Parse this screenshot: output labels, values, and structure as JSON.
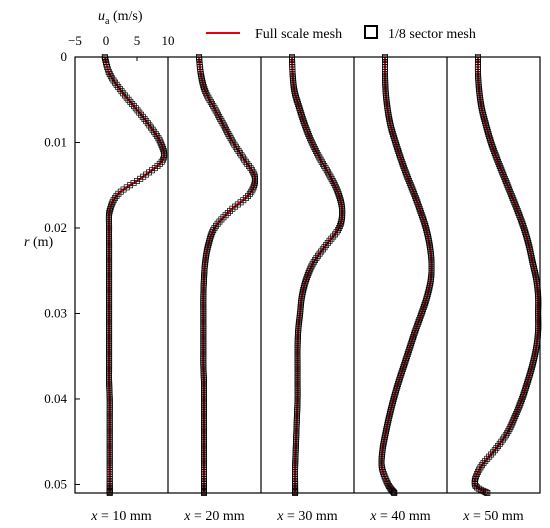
{
  "chart_data": {
    "type": "line",
    "title": "",
    "xlabel": "u",
    "xlabel_sub": "a",
    "xlabel_unit": " (m/s)",
    "ylabel": "r",
    "ylabel_unit": " (m)",
    "xlim": [
      -5,
      10
    ],
    "ylim": [
      0,
      0.051
    ],
    "x_ticks": [
      "−5",
      "0",
      "5",
      "10"
    ],
    "y_ticks": [
      "0",
      "0.01",
      "0.02",
      "0.03",
      "0.04",
      "0.05"
    ],
    "y_tick_values": [
      0,
      0.01,
      0.02,
      0.03,
      0.04,
      0.05
    ],
    "grid": false,
    "legend_position": "top",
    "legend": [
      {
        "name": "Full scale mesh",
        "marker": "line",
        "color": "#e8000b"
      },
      {
        "name": "1/8 sector mesh",
        "marker": "square",
        "color": "#000000"
      }
    ],
    "r": [
      0,
      0.002,
      0.004,
      0.006,
      0.008,
      0.01,
      0.012,
      0.014,
      0.016,
      0.018,
      0.02,
      0.022,
      0.024,
      0.026,
      0.028,
      0.03,
      0.032,
      0.034,
      0.036,
      0.038,
      0.04,
      0.042,
      0.044,
      0.046,
      0.048,
      0.05,
      0.051
    ],
    "panels": [
      {
        "label_prefix": "x",
        "label_value": " = 10 mm",
        "u": [
          -0.2,
          0.6,
          2.5,
          4.8,
          7.0,
          8.8,
          9.2,
          6.0,
          2.0,
          0.6,
          0.5,
          0.5,
          0.5,
          0.5,
          0.5,
          0.5,
          0.5,
          0.5,
          0.5,
          0.5,
          0.6,
          0.6,
          0.6,
          0.6,
          0.6,
          0.6,
          0.6
        ]
      },
      {
        "label_prefix": "x",
        "label_value": " = 20 mm",
        "u": [
          0.0,
          0.3,
          1.0,
          2.5,
          4.0,
          5.5,
          7.3,
          9.0,
          8.2,
          5.0,
          2.5,
          1.5,
          1.0,
          0.8,
          0.7,
          0.7,
          0.7,
          0.7,
          0.7,
          0.8,
          0.8,
          0.8,
          0.8,
          0.8,
          0.8,
          0.8,
          0.8
        ]
      },
      {
        "label_prefix": "x",
        "label_value": " = 30 mm",
        "u": [
          0.0,
          0.1,
          0.4,
          1.2,
          2.1,
          3.2,
          4.6,
          6.2,
          7.5,
          8.1,
          7.6,
          5.5,
          3.5,
          2.3,
          1.6,
          1.3,
          1.0,
          0.9,
          0.9,
          0.9,
          0.9,
          0.8,
          0.7,
          0.6,
          0.5,
          0.5,
          0.5
        ]
      },
      {
        "label_prefix": "x",
        "label_value": " = 40 mm",
        "u": [
          0.0,
          0.0,
          0.1,
          0.4,
          0.9,
          1.7,
          2.6,
          3.6,
          4.7,
          5.7,
          6.6,
          7.2,
          7.5,
          7.4,
          6.8,
          5.9,
          4.9,
          4.0,
          3.1,
          2.2,
          1.4,
          0.7,
          0.1,
          -0.4,
          -0.5,
          0.5,
          1.5
        ]
      },
      {
        "label_prefix": "x",
        "label_value": " = 50 mm",
        "u": [
          0.0,
          0.0,
          0.2,
          0.6,
          1.3,
          2.1,
          3.1,
          4.2,
          5.3,
          6.4,
          7.4,
          8.2,
          8.8,
          9.4,
          9.7,
          9.7,
          9.7,
          9.4,
          8.8,
          8.0,
          7.1,
          6.0,
          4.7,
          2.7,
          0.4,
          -0.5,
          1.5
        ]
      }
    ]
  }
}
